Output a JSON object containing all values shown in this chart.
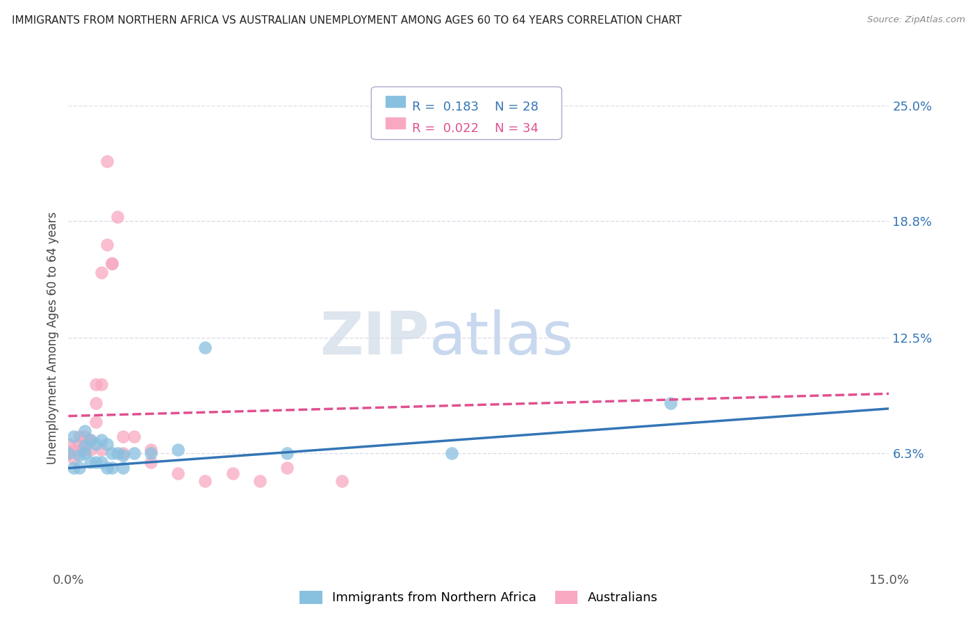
{
  "title": "IMMIGRANTS FROM NORTHERN AFRICA VS AUSTRALIAN UNEMPLOYMENT AMONG AGES 60 TO 64 YEARS CORRELATION CHART",
  "source": "Source: ZipAtlas.com",
  "ylabel": "Unemployment Among Ages 60 to 64 years",
  "xlim": [
    0.0,
    0.15
  ],
  "ylim": [
    0.0,
    0.25
  ],
  "yticks": [
    0.063,
    0.125,
    0.188,
    0.25
  ],
  "ytick_labels": [
    "6.3%",
    "12.5%",
    "18.8%",
    "25.0%"
  ],
  "xticks": [
    0.0,
    0.15
  ],
  "xtick_labels": [
    "0.0%",
    "15.0%"
  ],
  "blue_R": "0.183",
  "blue_N": "28",
  "pink_R": "0.022",
  "pink_N": "34",
  "blue_color": "#88c0e0",
  "pink_color": "#f8a8c0",
  "blue_line_color": "#3375b5",
  "pink_line_color": "#e05090",
  "watermark_zip": "ZIP",
  "watermark_atlas": "atlas",
  "blue_scatter_x": [
    0.0,
    0.001,
    0.001,
    0.002,
    0.002,
    0.003,
    0.003,
    0.003,
    0.004,
    0.004,
    0.005,
    0.005,
    0.006,
    0.006,
    0.007,
    0.007,
    0.008,
    0.008,
    0.009,
    0.01,
    0.01,
    0.012,
    0.015,
    0.02,
    0.025,
    0.04,
    0.07,
    0.11
  ],
  "blue_scatter_y": [
    0.063,
    0.072,
    0.055,
    0.062,
    0.055,
    0.067,
    0.063,
    0.075,
    0.07,
    0.058,
    0.068,
    0.058,
    0.07,
    0.058,
    0.068,
    0.055,
    0.063,
    0.055,
    0.063,
    0.062,
    0.055,
    0.063,
    0.063,
    0.065,
    0.12,
    0.063,
    0.063,
    0.09
  ],
  "pink_scatter_x": [
    0.0,
    0.0,
    0.001,
    0.001,
    0.002,
    0.002,
    0.002,
    0.003,
    0.003,
    0.003,
    0.004,
    0.004,
    0.005,
    0.005,
    0.005,
    0.006,
    0.006,
    0.006,
    0.007,
    0.007,
    0.008,
    0.008,
    0.009,
    0.01,
    0.01,
    0.012,
    0.015,
    0.015,
    0.02,
    0.025,
    0.03,
    0.035,
    0.04,
    0.05
  ],
  "pink_scatter_y": [
    0.063,
    0.068,
    0.065,
    0.06,
    0.068,
    0.065,
    0.072,
    0.07,
    0.065,
    0.072,
    0.065,
    0.07,
    0.1,
    0.09,
    0.08,
    0.065,
    0.16,
    0.1,
    0.175,
    0.22,
    0.165,
    0.165,
    0.19,
    0.072,
    0.063,
    0.072,
    0.058,
    0.065,
    0.052,
    0.048,
    0.052,
    0.048,
    0.055,
    0.048
  ],
  "blue_trend_x": [
    0.0,
    0.15
  ],
  "blue_trend_y": [
    0.055,
    0.087
  ],
  "pink_trend_x": [
    0.0,
    0.15
  ],
  "pink_trend_y": [
    0.083,
    0.095
  ],
  "background_color": "#ffffff",
  "grid_color": "#d8d8e8"
}
